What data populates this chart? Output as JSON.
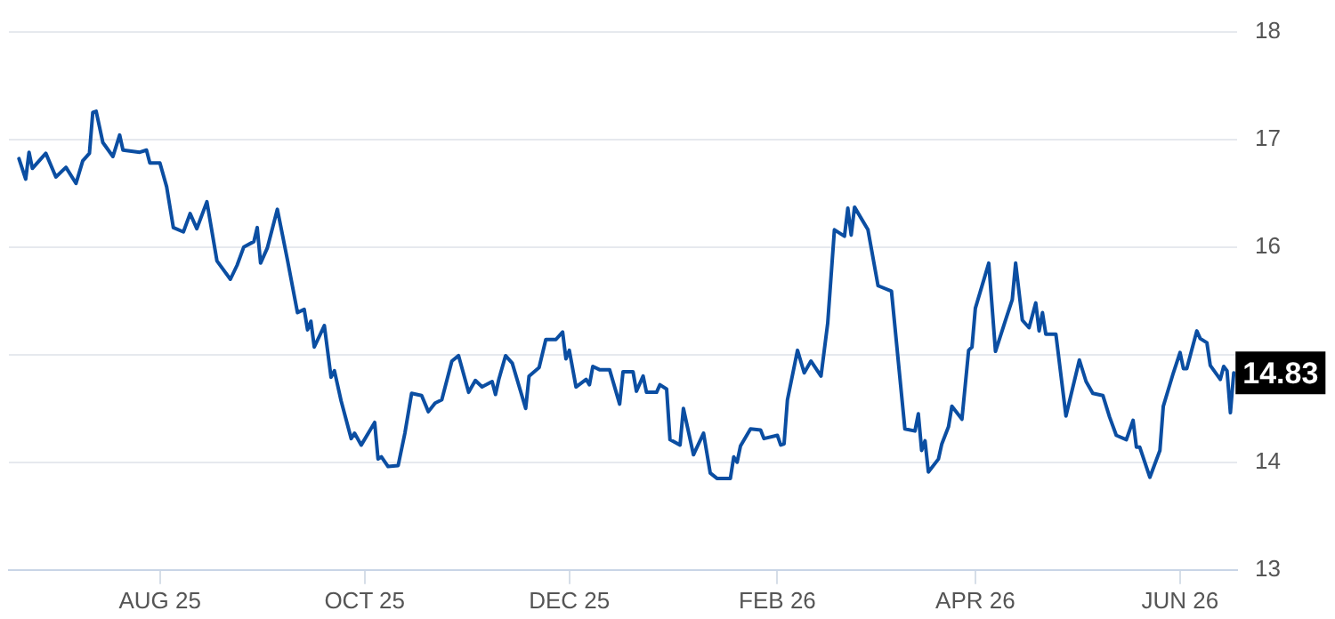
{
  "chart_data": {
    "type": "line",
    "line_style": "solid",
    "marker": "none",
    "grid": "y",
    "legend": false,
    "xlim": [
      "2025-06-17",
      "2026-06-18"
    ],
    "xticks": [
      {
        "value": "2025-08-01",
        "label": "AUG 25"
      },
      {
        "value": "2025-10-01",
        "label": "OCT 25"
      },
      {
        "value": "2025-12-01",
        "label": "DEC 25"
      },
      {
        "value": "2026-02-01",
        "label": "FEB 26"
      },
      {
        "value": "2026-04-01",
        "label": "APR 26"
      },
      {
        "value": "2026-06-01",
        "label": "JUN 26"
      }
    ],
    "ylim": [
      13,
      18
    ],
    "yticks": [
      13,
      14,
      {
        "value": 15,
        "label": null
      },
      16,
      17,
      18
    ],
    "annotations": [
      {
        "text": "14.83",
        "x": "2026-06-17",
        "y": 14.83
      }
    ],
    "series": [
      {
        "color": "#0b4ea2",
        "x": [
          "2025-06-20",
          "2025-06-22",
          "2025-06-23",
          "2025-06-24",
          "2025-06-28",
          "2025-07-01",
          "2025-07-04",
          "2025-07-07",
          "2025-07-09",
          "2025-07-11",
          "2025-07-12",
          "2025-07-13",
          "2025-07-15",
          "2025-07-18",
          "2025-07-20",
          "2025-07-21",
          "2025-07-26",
          "2025-07-28",
          "2025-07-29",
          "2025-08-01",
          "2025-08-03",
          "2025-08-05",
          "2025-08-08",
          "2025-08-10",
          "2025-08-12",
          "2025-08-15",
          "2025-08-18",
          "2025-08-22",
          "2025-08-24",
          "2025-08-26",
          "2025-08-29",
          "2025-08-30",
          "2025-08-31",
          "2025-09-02",
          "2025-09-05",
          "2025-09-08",
          "2025-09-11",
          "2025-09-13",
          "2025-09-14",
          "2025-09-15",
          "2025-09-16",
          "2025-09-19",
          "2025-09-21",
          "2025-09-22",
          "2025-09-24",
          "2025-09-27",
          "2025-09-28",
          "2025-09-30",
          "2025-10-04",
          "2025-10-05",
          "2025-10-06",
          "2025-10-08",
          "2025-10-11",
          "2025-10-13",
          "2025-10-15",
          "2025-10-18",
          "2025-10-20",
          "2025-10-22",
          "2025-10-24",
          "2025-10-27",
          "2025-10-29",
          "2025-11-01",
          "2025-11-03",
          "2025-11-05",
          "2025-11-08",
          "2025-11-09",
          "2025-11-10",
          "2025-11-12",
          "2025-11-14",
          "2025-11-18",
          "2025-11-19",
          "2025-11-22",
          "2025-11-24",
          "2025-11-27",
          "2025-11-29",
          "2025-11-30",
          "2025-12-01",
          "2025-12-03",
          "2025-12-06",
          "2025-12-07",
          "2025-12-08",
          "2025-12-10",
          "2025-12-13",
          "2025-12-16",
          "2025-12-17",
          "2025-12-20",
          "2025-12-21",
          "2025-12-23",
          "2025-12-24",
          "2025-12-27",
          "2025-12-28",
          "2025-12-30",
          "2025-12-31",
          "2026-01-03",
          "2026-01-04",
          "2026-01-07",
          "2026-01-10",
          "2026-01-12",
          "2026-01-14",
          "2026-01-18",
          "2026-01-19",
          "2026-01-20",
          "2026-01-21",
          "2026-01-24",
          "2026-01-27",
          "2026-01-28",
          "2026-02-01",
          "2026-02-02",
          "2026-02-03",
          "2026-02-04",
          "2026-02-07",
          "2026-02-09",
          "2026-02-11",
          "2026-02-14",
          "2026-02-16",
          "2026-02-18",
          "2026-02-21",
          "2026-02-22",
          "2026-02-23",
          "2026-02-24",
          "2026-02-28",
          "2026-03-03",
          "2026-03-07",
          "2026-03-11",
          "2026-03-14",
          "2026-03-15",
          "2026-03-16",
          "2026-03-17",
          "2026-03-18",
          "2026-03-21",
          "2026-03-22",
          "2026-03-24",
          "2026-03-25",
          "2026-03-28",
          "2026-03-30",
          "2026-03-31",
          "2026-04-01",
          "2026-04-05",
          "2026-04-07",
          "2026-04-10",
          "2026-04-12",
          "2026-04-13",
          "2026-04-15",
          "2026-04-17",
          "2026-04-19",
          "2026-04-20",
          "2026-04-21",
          "2026-04-22",
          "2026-04-25",
          "2026-04-28",
          "2026-05-02",
          "2026-05-04",
          "2026-05-06",
          "2026-05-09",
          "2026-05-11",
          "2026-05-13",
          "2026-05-16",
          "2026-05-18",
          "2026-05-19",
          "2026-05-20",
          "2026-05-23",
          "2026-05-26",
          "2026-05-27",
          "2026-05-30",
          "2026-06-01",
          "2026-06-02",
          "2026-06-03",
          "2026-06-06",
          "2026-06-07",
          "2026-06-09",
          "2026-06-10",
          "2026-06-13",
          "2026-06-14",
          "2026-06-15",
          "2026-06-16",
          "2026-06-17"
        ],
        "values": [
          16.82,
          16.63,
          16.88,
          16.73,
          16.87,
          16.65,
          16.74,
          16.59,
          16.8,
          16.87,
          17.25,
          17.26,
          16.97,
          16.84,
          17.04,
          16.9,
          16.88,
          16.9,
          16.78,
          16.78,
          16.56,
          16.18,
          16.14,
          16.31,
          16.17,
          16.42,
          15.87,
          15.7,
          15.83,
          16.0,
          16.05,
          16.18,
          15.85,
          15.99,
          16.35,
          15.88,
          15.39,
          15.42,
          15.23,
          15.31,
          15.07,
          15.27,
          14.79,
          14.85,
          14.57,
          14.22,
          14.27,
          14.16,
          14.37,
          14.03,
          14.05,
          13.96,
          13.97,
          14.27,
          14.64,
          14.62,
          14.47,
          14.55,
          14.58,
          14.94,
          14.99,
          14.65,
          14.76,
          14.7,
          14.75,
          14.63,
          14.77,
          14.99,
          14.92,
          14.5,
          14.8,
          14.88,
          15.14,
          15.14,
          15.21,
          14.96,
          15.04,
          14.7,
          14.77,
          14.72,
          14.89,
          14.86,
          14.86,
          14.54,
          14.84,
          14.84,
          14.66,
          14.8,
          14.65,
          14.65,
          14.72,
          14.68,
          14.21,
          14.16,
          14.5,
          14.07,
          14.27,
          13.9,
          13.85,
          13.85,
          14.05,
          14.0,
          14.15,
          14.31,
          14.3,
          14.22,
          14.25,
          14.16,
          14.17,
          14.58,
          15.04,
          14.83,
          14.94,
          14.8,
          15.29,
          16.16,
          16.1,
          16.36,
          16.11,
          16.37,
          16.16,
          15.64,
          15.59,
          14.31,
          14.29,
          14.45,
          14.11,
          14.2,
          13.91,
          14.03,
          14.17,
          14.33,
          14.52,
          14.4,
          15.04,
          15.07,
          15.43,
          15.85,
          15.03,
          15.32,
          15.51,
          15.85,
          15.32,
          15.25,
          15.48,
          15.22,
          15.39,
          15.19,
          15.19,
          14.43,
          14.95,
          14.75,
          14.64,
          14.62,
          14.42,
          14.25,
          14.21,
          14.39,
          14.14,
          14.14,
          13.86,
          14.11,
          14.52,
          14.83,
          15.02,
          14.87,
          14.87,
          15.22,
          15.15,
          15.11,
          14.9,
          14.77,
          14.89,
          14.85,
          14.46,
          14.83
        ]
      }
    ]
  }
}
